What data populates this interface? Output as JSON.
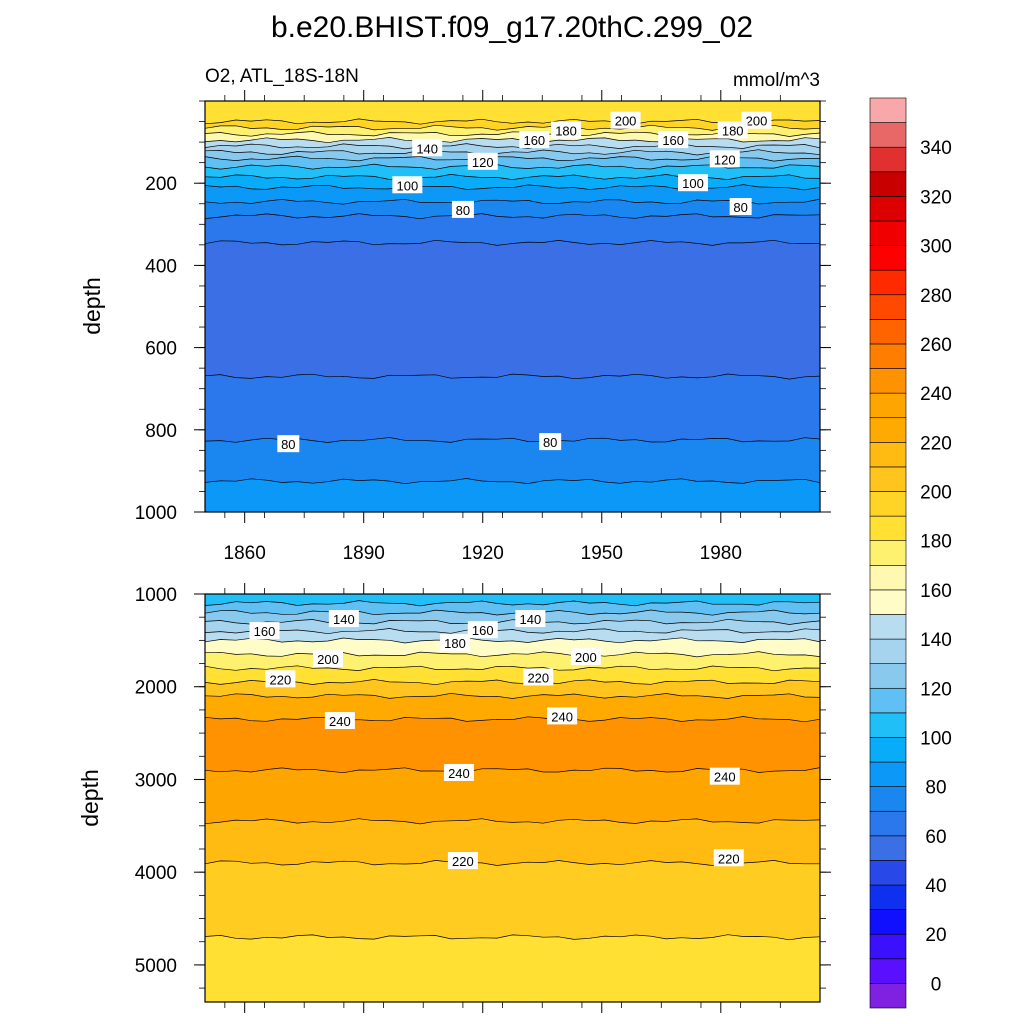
{
  "chart_data": {
    "type": "contour",
    "title": "b.e20.BHIST.f09_g17.20thC.299_02",
    "left_string": "O2, ATL_18S-18N",
    "right_string": "mmol/m^3",
    "panels": [
      {
        "name": "upper",
        "ylabel": "depth",
        "ylim": [
          1000,
          0
        ],
        "yticks": [
          200,
          400,
          600,
          800,
          1000
        ],
        "xticks": [
          1860,
          1890,
          1920,
          1950,
          1980
        ],
        "xlim": [
          1850,
          2005
        ],
        "bands": [
          {
            "top": 0,
            "bottom": 50,
            "color": "#ffe033"
          },
          {
            "top": 50,
            "bottom": 65,
            "color": "#ffd426"
          },
          {
            "top": 65,
            "bottom": 80,
            "color": "#fff170"
          },
          {
            "top": 80,
            "bottom": 95,
            "color": "#fff8b0"
          },
          {
            "top": 95,
            "bottom": 110,
            "color": "#b9ddf0"
          },
          {
            "top": 110,
            "bottom": 125,
            "color": "#a6d4ef"
          },
          {
            "top": 125,
            "bottom": 140,
            "color": "#8ac9ee"
          },
          {
            "top": 140,
            "bottom": 160,
            "color": "#60c0f4"
          },
          {
            "top": 160,
            "bottom": 185,
            "color": "#20bff8"
          },
          {
            "top": 185,
            "bottom": 210,
            "color": "#08acf8"
          },
          {
            "top": 210,
            "bottom": 245,
            "color": "#0c98f7"
          },
          {
            "top": 245,
            "bottom": 280,
            "color": "#1a86f0"
          },
          {
            "top": 280,
            "bottom": 345,
            "color": "#2b78ec"
          },
          {
            "top": 345,
            "bottom": 670,
            "color": "#3b6fe6"
          },
          {
            "top": 670,
            "bottom": 825,
            "color": "#2b78ec"
          },
          {
            "top": 825,
            "bottom": 925,
            "color": "#1a86f0"
          },
          {
            "top": 925,
            "bottom": 1000,
            "color": "#0c98f7"
          }
        ],
        "contour_labels": [
          {
            "text": "200",
            "year": 1956,
            "depth": 48
          },
          {
            "text": "200",
            "year": 1989,
            "depth": 48
          },
          {
            "text": "180",
            "year": 1941,
            "depth": 72
          },
          {
            "text": "180",
            "year": 1983,
            "depth": 72
          },
          {
            "text": "160",
            "year": 1933,
            "depth": 95
          },
          {
            "text": "160",
            "year": 1968,
            "depth": 95
          },
          {
            "text": "140",
            "year": 1906,
            "depth": 115
          },
          {
            "text": "120",
            "year": 1920,
            "depth": 148
          },
          {
            "text": "120",
            "year": 1981,
            "depth": 142
          },
          {
            "text": "100",
            "year": 1901,
            "depth": 205
          },
          {
            "text": "100",
            "year": 1973,
            "depth": 200
          },
          {
            "text": "80",
            "year": 1915,
            "depth": 265
          },
          {
            "text": "80",
            "year": 1985,
            "depth": 258
          },
          {
            "text": "80",
            "year": 1871,
            "depth": 835
          },
          {
            "text": "80",
            "year": 1937,
            "depth": 830
          }
        ]
      },
      {
        "name": "lower",
        "ylabel": "depth",
        "ylim": [
          5400,
          1000
        ],
        "yticks": [
          1000,
          2000,
          3000,
          4000,
          5000
        ],
        "xlim": [
          1850,
          2005
        ],
        "bands": [
          {
            "top": 1000,
            "bottom": 1100,
            "color": "#20bff8"
          },
          {
            "top": 1100,
            "bottom": 1200,
            "color": "#60c0f4"
          },
          {
            "top": 1200,
            "bottom": 1300,
            "color": "#8ac9ee"
          },
          {
            "top": 1300,
            "bottom": 1400,
            "color": "#a6d4ef"
          },
          {
            "top": 1400,
            "bottom": 1500,
            "color": "#b9ddf0"
          },
          {
            "top": 1500,
            "bottom": 1650,
            "color": "#fffcc8"
          },
          {
            "top": 1650,
            "bottom": 1800,
            "color": "#fff170"
          },
          {
            "top": 1800,
            "bottom": 1950,
            "color": "#ffe033"
          },
          {
            "top": 1950,
            "bottom": 2100,
            "color": "#ffc41e"
          },
          {
            "top": 2100,
            "bottom": 2350,
            "color": "#ffaa00"
          },
          {
            "top": 2350,
            "bottom": 2900,
            "color": "#ff9200"
          },
          {
            "top": 2900,
            "bottom": 3450,
            "color": "#ffa500"
          },
          {
            "top": 3450,
            "bottom": 3900,
            "color": "#ffbb12"
          },
          {
            "top": 3900,
            "bottom": 4700,
            "color": "#ffcd22"
          },
          {
            "top": 4700,
            "bottom": 5400,
            "color": "#ffe033"
          }
        ],
        "contour_labels": [
          {
            "text": "160",
            "year": 1865,
            "depth": 1400
          },
          {
            "text": "140",
            "year": 1885,
            "depth": 1270
          },
          {
            "text": "140",
            "year": 1932,
            "depth": 1270
          },
          {
            "text": "160",
            "year": 1920,
            "depth": 1390
          },
          {
            "text": "180",
            "year": 1913,
            "depth": 1530
          },
          {
            "text": "200",
            "year": 1881,
            "depth": 1700
          },
          {
            "text": "200",
            "year": 1946,
            "depth": 1680
          },
          {
            "text": "220",
            "year": 1869,
            "depth": 1920
          },
          {
            "text": "220",
            "year": 1934,
            "depth": 1900
          },
          {
            "text": "240",
            "year": 1884,
            "depth": 2370
          },
          {
            "text": "240",
            "year": 1940,
            "depth": 2320
          },
          {
            "text": "240",
            "year": 1914,
            "depth": 2930
          },
          {
            "text": "240",
            "year": 1981,
            "depth": 2970
          },
          {
            "text": "220",
            "year": 1915,
            "depth": 3880
          },
          {
            "text": "220",
            "year": 1982,
            "depth": 3850
          }
        ]
      }
    ],
    "colorbar": {
      "colors": [
        "#8020e0",
        "#5a10ff",
        "#3a10ff",
        "#1010ff",
        "#1030f0",
        "#2848e8",
        "#3b6fe6",
        "#2b78ec",
        "#1a86f0",
        "#0c98f7",
        "#08acf8",
        "#20bff8",
        "#60c0f4",
        "#8ac9ee",
        "#a6d4ef",
        "#b9ddf0",
        "#fffcc8",
        "#fff8b0",
        "#fff170",
        "#ffe033",
        "#ffd426",
        "#ffc41e",
        "#ffbb12",
        "#ffaa00",
        "#ffa500",
        "#ff9200",
        "#ff7d00",
        "#ff6400",
        "#ff4800",
        "#ff2a00",
        "#ff0000",
        "#f00000",
        "#dd0000",
        "#c80000",
        "#e03030",
        "#e86868",
        "#f8a8a8"
      ],
      "labels": [
        "0",
        "20",
        "40",
        "60",
        "80",
        "100",
        "120",
        "140",
        "160",
        "180",
        "200",
        "220",
        "240",
        "260",
        "280",
        "300",
        "320",
        "340"
      ]
    }
  }
}
